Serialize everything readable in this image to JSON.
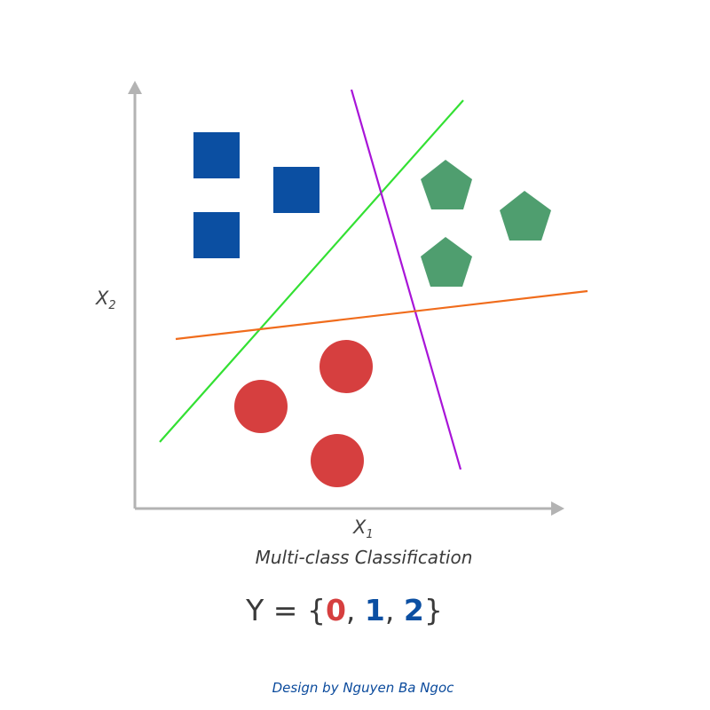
{
  "axes": {
    "x_label": "X",
    "x_sub": "1",
    "y_label": "X",
    "y_sub": "2"
  },
  "caption": "Multi-class Classification",
  "label_set": {
    "prefix": "Y = {",
    "labels": [
      "0",
      "1",
      "2"
    ],
    "separator": ", ",
    "suffix": "}"
  },
  "credit": "Design by Nguyen Ba Ngoc",
  "classes": [
    {
      "name": "class-0",
      "shape": "circle",
      "color": "#d63f3f"
    },
    {
      "name": "class-1",
      "shape": "square",
      "color": "#0b4fa2"
    },
    {
      "name": "class-2",
      "shape": "pentagon",
      "color": "#4f9e6f"
    }
  ],
  "colors": {
    "axis": "#b3b3b3",
    "line_green": "#33e033",
    "line_purple": "#a814d8",
    "line_orange": "#f06c1c",
    "text": "#3a3a3a",
    "credit": "#0a4a9c"
  }
}
